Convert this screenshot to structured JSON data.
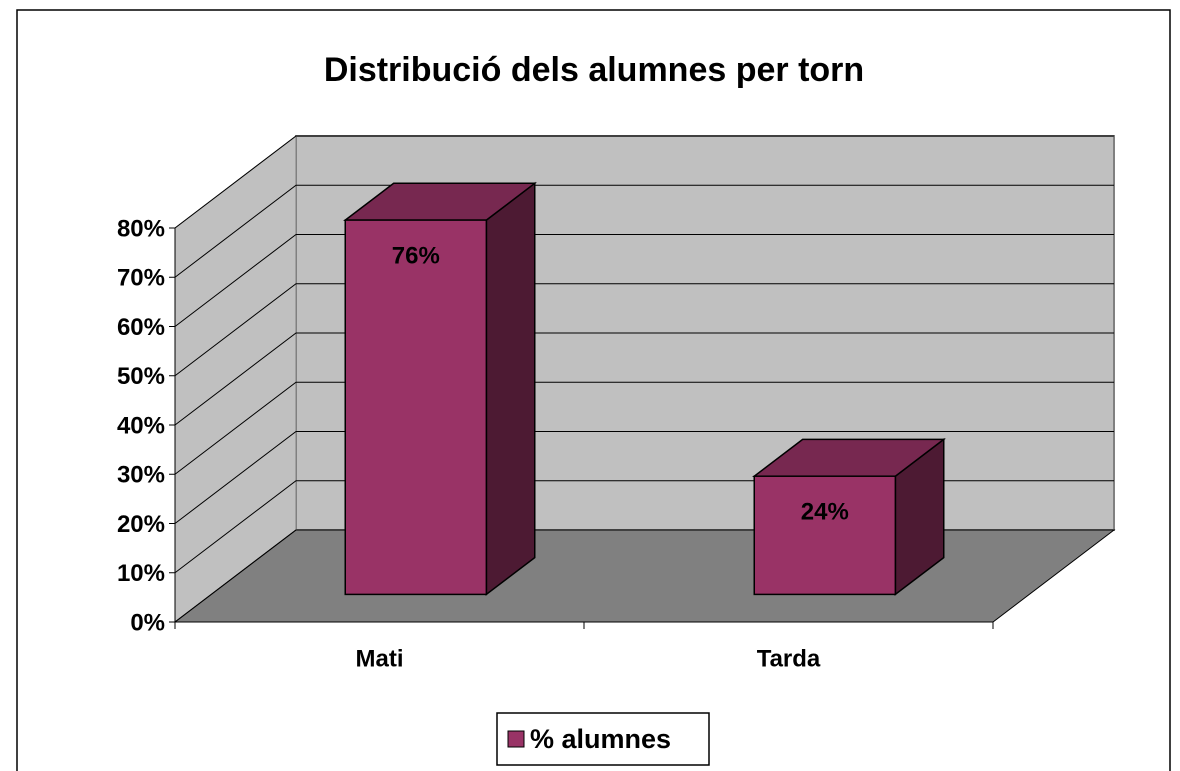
{
  "chart_data": {
    "type": "bar3d",
    "title": "Distribució dels alumnes per torn",
    "categories": [
      "Mati",
      "Tarda"
    ],
    "series": [
      {
        "name": "% alumnes",
        "color": "#993366",
        "values": [
          76,
          24
        ],
        "value_labels": [
          "76%",
          "24%"
        ]
      }
    ],
    "ylim": [
      0,
      80
    ],
    "yticks": [
      {
        "value": 0,
        "label": "0%"
      },
      {
        "value": 10,
        "label": "10%"
      },
      {
        "value": 20,
        "label": "20%"
      },
      {
        "value": 30,
        "label": "30%"
      },
      {
        "value": 40,
        "label": "40%"
      },
      {
        "value": 50,
        "label": "50%"
      },
      {
        "value": 60,
        "label": "60%"
      },
      {
        "value": 70,
        "label": "70%"
      },
      {
        "value": 80,
        "label": "80%"
      }
    ],
    "grid": true,
    "legend": "bottom"
  }
}
